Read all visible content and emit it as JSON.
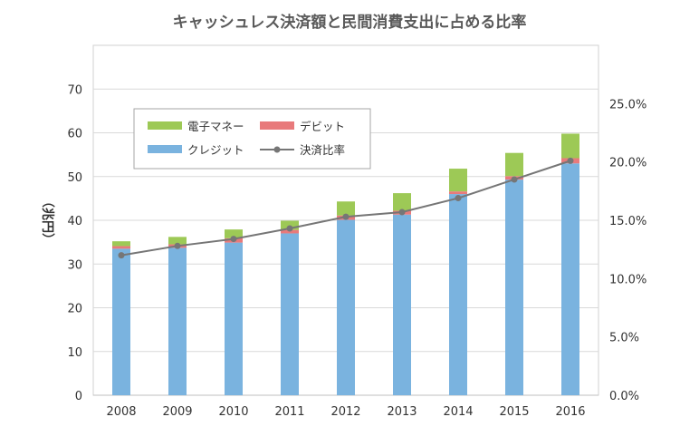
{
  "chart_data": {
    "type": "bar",
    "title": "キャッシュレス決済額と民間消費支出に占める比率",
    "ylabel": "（兆円）",
    "xlabel": "",
    "categories": [
      "2008",
      "2009",
      "2010",
      "2011",
      "2012",
      "2013",
      "2014",
      "2015",
      "2016"
    ],
    "ylim": [
      0,
      80
    ],
    "y_ticks": [
      0,
      10,
      20,
      30,
      40,
      50,
      60,
      70
    ],
    "y2lim": [
      0,
      0.3
    ],
    "y2_ticks": [
      "0.0%",
      "5.0%",
      "10.0%",
      "15.0%",
      "20.0%",
      "25.0%"
    ],
    "stacked": true,
    "series": [
      {
        "name": "クレジット",
        "color": "#7ab3df",
        "type": "bar",
        "values": [
          33.5,
          33.7,
          34.9,
          37.0,
          40.1,
          41.3,
          46.0,
          49.3,
          53.0
        ]
      },
      {
        "name": "デビット",
        "color": "#e87a7b",
        "type": "bar",
        "values": [
          0.6,
          0.8,
          1.0,
          0.8,
          1.0,
          0.9,
          0.6,
          0.8,
          1.2
        ]
      },
      {
        "name": "電子マネー",
        "color": "#9dc956",
        "type": "bar",
        "values": [
          1.1,
          1.7,
          2.0,
          2.1,
          3.2,
          4.0,
          5.2,
          5.3,
          5.6
        ]
      },
      {
        "name": "決済比率",
        "color": "#767676",
        "type": "line",
        "axis": "right",
        "values": [
          0.12,
          0.128,
          0.134,
          0.143,
          0.153,
          0.157,
          0.169,
          0.185,
          0.201
        ]
      }
    ],
    "legend": {
      "placement": "top-left",
      "rows": [
        [
          {
            "name": "電子マネー",
            "kind": "box",
            "color": "#9dc956"
          },
          {
            "name": "デビット",
            "kind": "box",
            "color": "#e87a7b"
          }
        ],
        [
          {
            "name": "クレジット",
            "kind": "box",
            "color": "#7ab3df"
          },
          {
            "name": "決済比率",
            "kind": "line",
            "color": "#767676"
          }
        ]
      ]
    },
    "grid": true
  }
}
